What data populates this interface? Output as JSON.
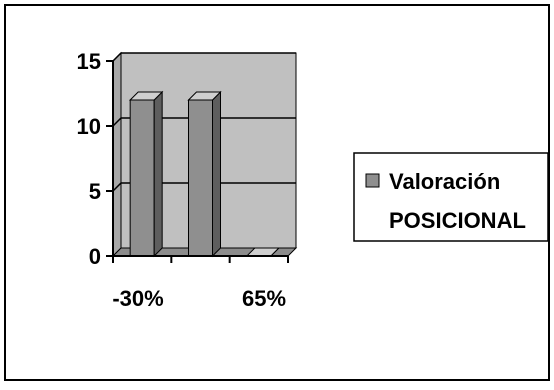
{
  "chart_data": {
    "type": "bar",
    "categories": [
      "-30%",
      "",
      "65%"
    ],
    "series": [
      {
        "name": "Valoración POSICIONAL",
        "values": [
          12,
          12,
          0
        ]
      }
    ],
    "ylim": [
      0,
      15
    ],
    "y_ticks": [
      "0",
      "5",
      "10",
      "15"
    ],
    "x_tick_labels": [
      "-30%",
      "65%"
    ],
    "legend": {
      "placement": "right",
      "lines": [
        "Valoración",
        "POSICIONAL"
      ]
    },
    "grid": true,
    "colors": {
      "plot_back": "#c0c0c0",
      "plot_side": "#a8a8a8",
      "plot_floor": "#8c8c8c",
      "bar_front": "#8f8f8f",
      "bar_side": "#5e5e5e",
      "bar_top": "#cfcfcf",
      "legend_swatch": "#8f8f8f"
    }
  }
}
